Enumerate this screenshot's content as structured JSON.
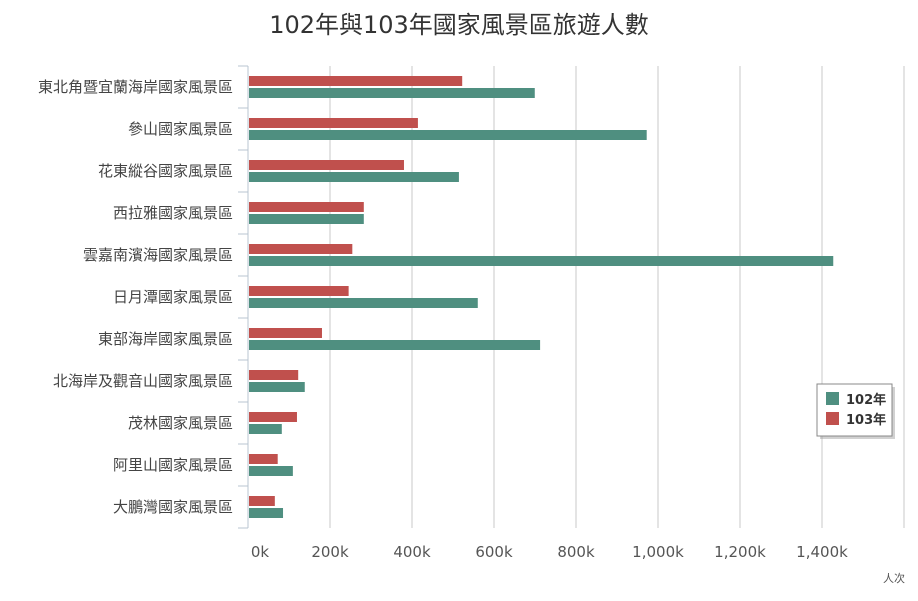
{
  "chart_data": {
    "type": "bar",
    "orientation": "horizontal",
    "title": "102年與103年國家風景區旅遊人數",
    "unit_label": "人次",
    "categories": [
      "東北角暨宜蘭海岸國家風景區",
      "參山國家風景區",
      "花東縱谷國家風景區",
      "西拉雅國家風景區",
      "雲嘉南濱海國家風景區",
      "日月潭國家風景區",
      "東部海岸國家風景區",
      "北海岸及觀音山國家風景區",
      "茂林國家風景區",
      "阿里山國家風景區",
      "大鵬灣國家風景區"
    ],
    "series": [
      {
        "name": "103年",
        "color": "#c0504d",
        "values": [
          520000,
          412000,
          378000,
          280000,
          252000,
          243000,
          178000,
          120000,
          117000,
          70000,
          63000
        ]
      },
      {
        "name": "102年",
        "color": "#4f8f80",
        "values": [
          697000,
          970000,
          512000,
          280000,
          1425000,
          558000,
          710000,
          136000,
          80000,
          107000,
          83000
        ]
      }
    ],
    "x_ticks": [
      "0k",
      "200k",
      "400k",
      "600k",
      "800k",
      "1,000k",
      "1,200k",
      "1,400k"
    ],
    "xlim": [
      0,
      1600000
    ],
    "grid": true,
    "legend_position": "right",
    "legend_order": [
      "102年",
      "103年"
    ]
  }
}
